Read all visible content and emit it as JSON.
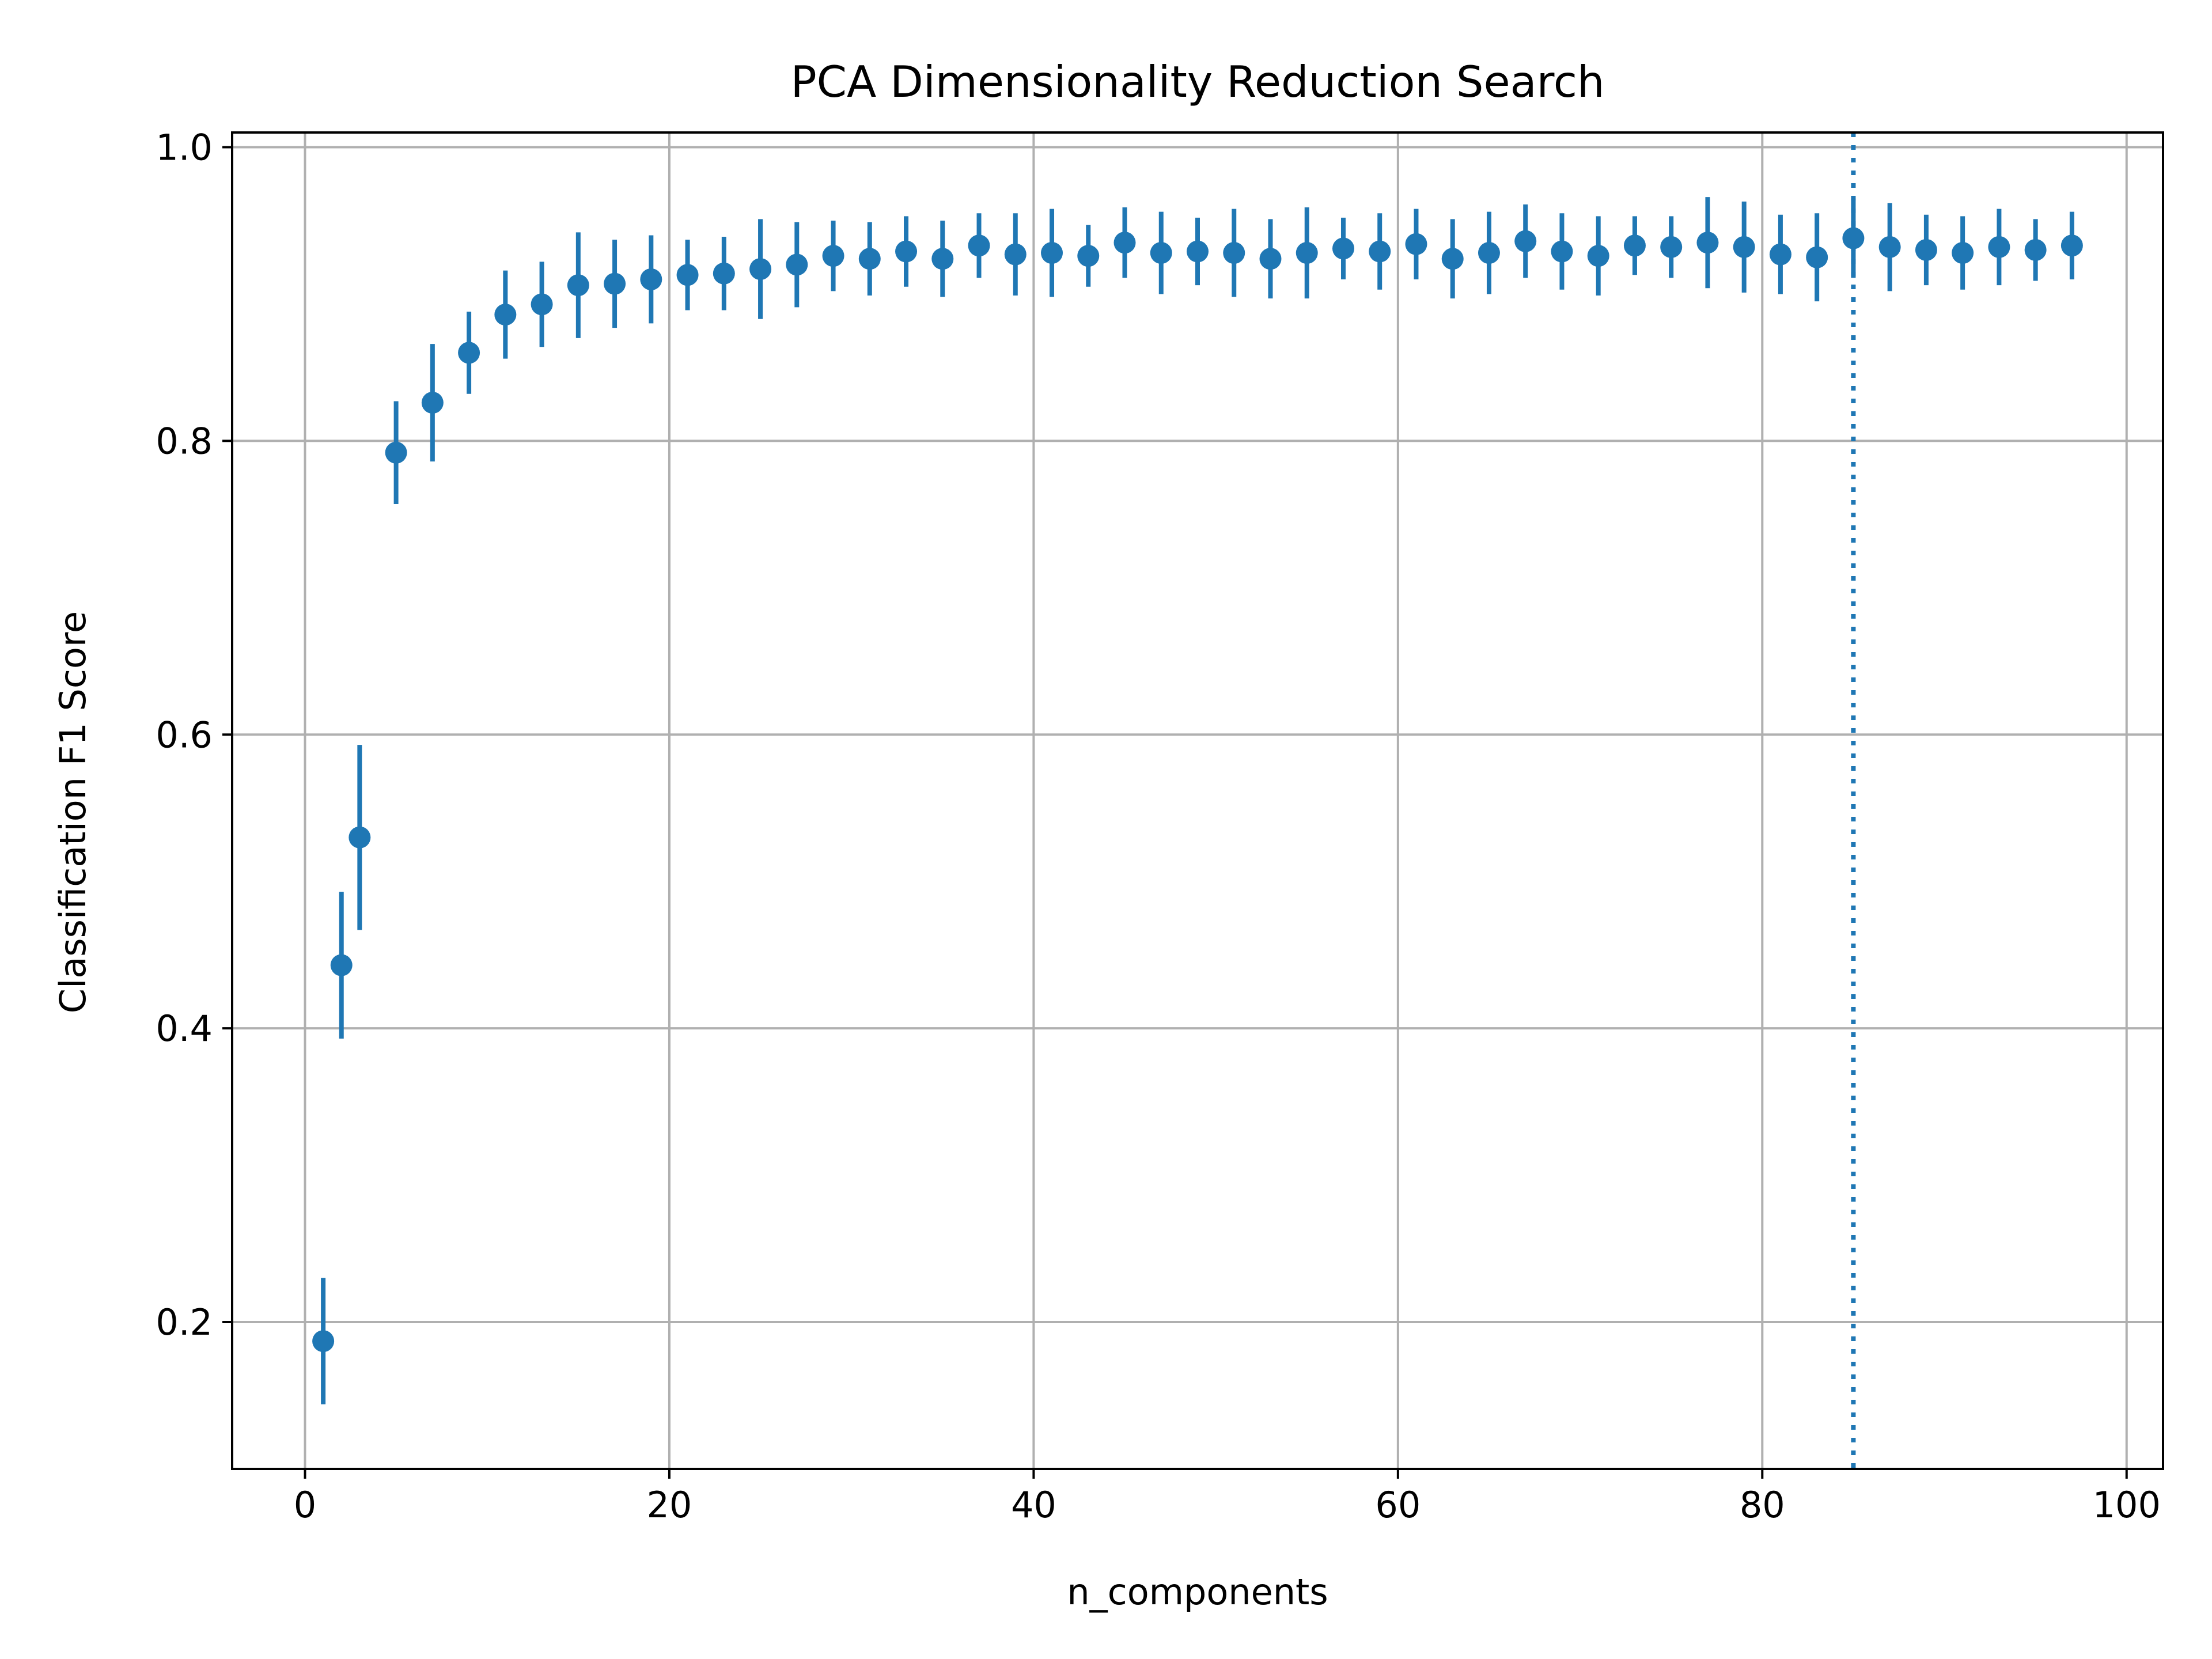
{
  "chart_data": {
    "type": "scatter",
    "title": "PCA Dimensionality Reduction Search",
    "xlabel": "n_components",
    "ylabel": "Classification F1 Score",
    "xlim": [
      -4,
      102
    ],
    "ylim": [
      0.1,
      1.01
    ],
    "xticks": [
      0,
      20,
      40,
      60,
      80,
      100
    ],
    "yticks": [
      0.2,
      0.4,
      0.6,
      0.8,
      1.0
    ],
    "xtick_labels": [
      "0",
      "20",
      "40",
      "60",
      "80",
      "100"
    ],
    "ytick_labels": [
      "0.2",
      "0.4",
      "0.6",
      "0.8",
      "1.0"
    ],
    "grid": true,
    "color": "#1f77b4",
    "reference_line": {
      "x": 85,
      "style": "dotted"
    },
    "x": [
      1,
      2,
      3,
      5,
      7,
      9,
      11,
      13,
      15,
      17,
      19,
      21,
      23,
      25,
      27,
      29,
      31,
      33,
      35,
      37,
      39,
      41,
      43,
      45,
      47,
      49,
      51,
      53,
      55,
      57,
      59,
      61,
      63,
      65,
      67,
      69,
      71,
      73,
      75,
      77,
      79,
      81,
      83,
      85,
      87,
      89,
      91,
      93,
      95,
      97
    ],
    "y": [
      0.187,
      0.443,
      0.53,
      0.792,
      0.826,
      0.86,
      0.886,
      0.893,
      0.906,
      0.907,
      0.91,
      0.913,
      0.914,
      0.917,
      0.92,
      0.926,
      0.924,
      0.929,
      0.924,
      0.933,
      0.927,
      0.928,
      0.926,
      0.935,
      0.928,
      0.929,
      0.928,
      0.924,
      0.928,
      0.931,
      0.929,
      0.934,
      0.924,
      0.928,
      0.936,
      0.929,
      0.926,
      0.933,
      0.932,
      0.935,
      0.932,
      0.927,
      0.925,
      0.938,
      0.932,
      0.93,
      0.928,
      0.932,
      0.93,
      0.933
    ],
    "yerr": [
      0.043,
      0.05,
      0.063,
      0.035,
      0.04,
      0.028,
      0.03,
      0.029,
      0.036,
      0.03,
      0.03,
      0.024,
      0.025,
      0.034,
      0.029,
      0.024,
      0.025,
      0.024,
      0.026,
      0.022,
      0.028,
      0.03,
      0.021,
      0.024,
      0.028,
      0.023,
      0.03,
      0.027,
      0.031,
      0.021,
      0.026,
      0.024,
      0.027,
      0.028,
      0.025,
      0.026,
      0.027,
      0.02,
      0.021,
      0.031,
      0.031,
      0.027,
      0.03,
      0.027,
      0.03,
      0.024,
      0.025,
      0.026,
      0.021,
      0.023
    ]
  }
}
